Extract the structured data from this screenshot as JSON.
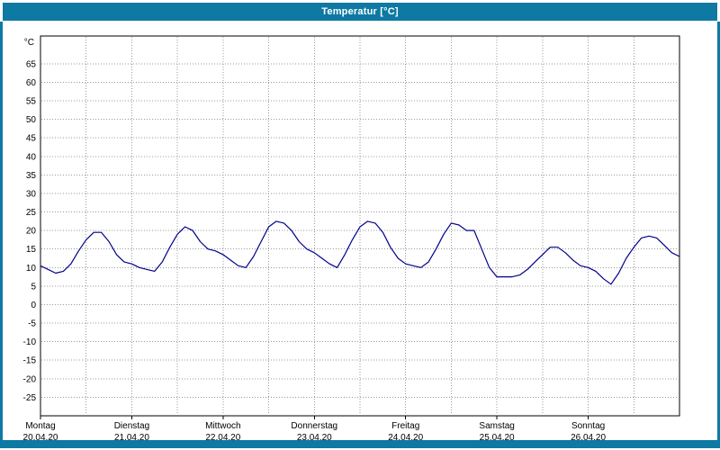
{
  "window": {
    "title": "Temperatur [°C]",
    "accent_color": "#0e79a3"
  },
  "chart_data": {
    "type": "line",
    "title": "Temperatur [°C]",
    "y_unit_label": "°C",
    "y_ticks": [
      65,
      60,
      55,
      50,
      45,
      40,
      35,
      30,
      25,
      20,
      15,
      10,
      5,
      0,
      -5,
      -10,
      -15,
      -20,
      -25
    ],
    "ylim": [
      -30,
      72.5
    ],
    "grid": "dotted",
    "legend": "none",
    "x_axis": {
      "duration_hours": 168,
      "grid_interval_hours": 12,
      "days": [
        {
          "name": "Montag",
          "date": "20.04.20"
        },
        {
          "name": "Dienstag",
          "date": "21.04.20"
        },
        {
          "name": "Mittwoch",
          "date": "22.04.20"
        },
        {
          "name": "Donnerstag",
          "date": "23.04.20"
        },
        {
          "name": "Freitag",
          "date": "24.04.20"
        },
        {
          "name": "Samstag",
          "date": "25.04.20"
        },
        {
          "name": "Sonntag",
          "date": "26.04.20"
        }
      ]
    },
    "colors": {
      "plot_background": "#ffffff",
      "plot_border": "#000000",
      "grid": "#999999",
      "text": "#000000",
      "line": "#00008b"
    },
    "series": [
      {
        "name": "Temperatur",
        "color": "#00008b",
        "x_start_hour": 0,
        "x_interval_hours": 2,
        "values": [
          10.5,
          9.5,
          8.5,
          9,
          11,
          14.5,
          17.5,
          19.5,
          19.5,
          17,
          13.5,
          11.5,
          11,
          10,
          9.5,
          9,
          11.5,
          15.5,
          19,
          21,
          20,
          17,
          15,
          14.5,
          13.5,
          12,
          10.5,
          10,
          13,
          17,
          21,
          22.5,
          22,
          20,
          17,
          15,
          14,
          12.5,
          11,
          10,
          13.5,
          17.5,
          21,
          22.5,
          22,
          19.5,
          15.5,
          12.5,
          11,
          10.5,
          10,
          11.5,
          15,
          19,
          22,
          21.5,
          20,
          20,
          15,
          10,
          7.5,
          7.5,
          7.5,
          8,
          9.5,
          11.5,
          13.5,
          15.5,
          15.5,
          14,
          12,
          10.5,
          10,
          9,
          7,
          5.5,
          8.5,
          12.5,
          15.5,
          18,
          18.5,
          18,
          16,
          14,
          13
        ]
      }
    ]
  }
}
